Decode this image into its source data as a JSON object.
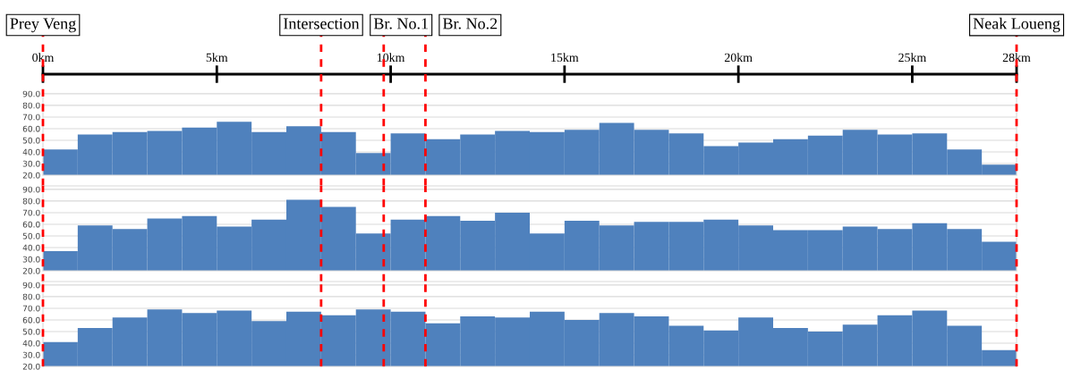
{
  "chart_data": [
    {
      "type": "histogram",
      "bins": [
        0,
        1,
        2,
        3,
        4,
        5,
        6,
        7,
        8,
        9,
        10,
        11,
        12,
        13,
        14,
        15,
        16,
        17,
        18,
        19,
        20,
        21,
        22,
        23,
        24,
        25,
        26,
        27,
        28
      ],
      "values": [
        42,
        55,
        57,
        58,
        61,
        66,
        57,
        62,
        57,
        39,
        56,
        51,
        55,
        58,
        57,
        59,
        65,
        59,
        56,
        45,
        48,
        51,
        54,
        59,
        55,
        56,
        42,
        29
      ],
      "color": "#4f81bd",
      "xlim": [
        0,
        28
      ],
      "ylim": [
        20,
        93
      ],
      "yticks": [
        {
          "value": 20,
          "label": "20.0"
        },
        {
          "value": 30,
          "label": "30.0"
        },
        {
          "value": 40,
          "label": "40.0"
        },
        {
          "value": 50,
          "label": "50.0"
        },
        {
          "value": 60,
          "label": "60.0"
        },
        {
          "value": 70,
          "label": "70.0"
        },
        {
          "value": 80,
          "label": "80.0"
        },
        {
          "value": 90,
          "label": "90.0"
        }
      ],
      "xticks": [
        {
          "value": 0,
          "label": "0km"
        },
        {
          "value": 5,
          "label": "5km"
        },
        {
          "value": 10,
          "label": "10km"
        },
        {
          "value": 15,
          "label": "15km"
        },
        {
          "value": 20,
          "label": "20km"
        },
        {
          "value": 25,
          "label": "25km"
        },
        {
          "value": 28,
          "label": "28km"
        }
      ],
      "grid": "y",
      "ref_lines": [
        {
          "axis": "x",
          "value": 0,
          "label": "Prey Veng",
          "color": "#ff0000",
          "line_style": "dashed"
        },
        {
          "axis": "x",
          "value": 8,
          "label": "Intersection",
          "color": "#ff0000",
          "line_style": "dashed"
        },
        {
          "axis": "x",
          "value": 9.8,
          "label": "Br. No.1",
          "color": "#ff0000",
          "line_style": "dashed"
        },
        {
          "axis": "x",
          "value": 11,
          "label": "Br. No.2",
          "color": "#ff0000",
          "line_style": "dashed"
        },
        {
          "axis": "x",
          "value": 28,
          "label": "Neak Loueng",
          "color": "#ff0000",
          "line_style": "dashed"
        }
      ]
    },
    {
      "type": "histogram",
      "bins": [
        0,
        1,
        2,
        3,
        4,
        5,
        6,
        7,
        8,
        9,
        10,
        11,
        12,
        13,
        14,
        15,
        16,
        17,
        18,
        19,
        20,
        21,
        22,
        23,
        24,
        25,
        26,
        27,
        28
      ],
      "values": [
        37,
        59,
        56,
        65,
        67,
        58,
        64,
        81,
        75,
        52,
        64,
        67,
        63,
        70,
        52,
        63,
        59,
        62,
        62,
        64,
        59,
        55,
        55,
        58,
        56,
        61,
        56,
        45
      ],
      "color": "#4f81bd",
      "xlim": [
        0,
        28
      ],
      "ylim": [
        20,
        93
      ],
      "yticks": [
        {
          "value": 20,
          "label": "20.0"
        },
        {
          "value": 30,
          "label": "30.0"
        },
        {
          "value": 40,
          "label": "40.0"
        },
        {
          "value": 50,
          "label": "50.0"
        },
        {
          "value": 60,
          "label": "60.0"
        },
        {
          "value": 70,
          "label": "70.0"
        },
        {
          "value": 80,
          "label": "80.0"
        },
        {
          "value": 90,
          "label": "90.0"
        }
      ],
      "tick_labels": "y",
      "grid": "y",
      "ref_lines": [
        {
          "axis": "x",
          "value": 0,
          "color": "#ff0000",
          "line_style": "dashed"
        },
        {
          "axis": "x",
          "value": 8,
          "color": "#ff0000",
          "line_style": "dashed"
        },
        {
          "axis": "x",
          "value": 9.8,
          "color": "#ff0000",
          "line_style": "dashed"
        },
        {
          "axis": "x",
          "value": 11,
          "color": "#ff0000",
          "line_style": "dashed"
        },
        {
          "axis": "x",
          "value": 28,
          "color": "#ff0000",
          "line_style": "dashed"
        }
      ]
    },
    {
      "type": "histogram",
      "bins": [
        0,
        1,
        2,
        3,
        4,
        5,
        6,
        7,
        8,
        9,
        10,
        11,
        12,
        13,
        14,
        15,
        16,
        17,
        18,
        19,
        20,
        21,
        22,
        23,
        24,
        25,
        26,
        27,
        28
      ],
      "values": [
        41,
        53,
        62,
        69,
        66,
        68,
        59,
        67,
        64,
        69,
        67,
        57,
        63,
        62,
        67,
        60,
        66,
        63,
        55,
        51,
        62,
        53,
        50,
        56,
        64,
        68,
        55,
        34
      ],
      "color": "#4f81bd",
      "xlim": [
        0,
        28
      ],
      "ylim": [
        20,
        93
      ],
      "yticks": [
        {
          "value": 20,
          "label": "20.0"
        },
        {
          "value": 30,
          "label": "30.0"
        },
        {
          "value": 40,
          "label": "40.0"
        },
        {
          "value": 50,
          "label": "50.0"
        },
        {
          "value": 60,
          "label": "60.0"
        },
        {
          "value": 70,
          "label": "70.0"
        },
        {
          "value": 80,
          "label": "80.0"
        },
        {
          "value": 90,
          "label": "90.0"
        }
      ],
      "tick_labels": "y",
      "grid": "y",
      "ref_lines": [
        {
          "axis": "x",
          "value": 0,
          "color": "#ff0000",
          "line_style": "dashed"
        },
        {
          "axis": "x",
          "value": 8,
          "color": "#ff0000",
          "line_style": "dashed"
        },
        {
          "axis": "x",
          "value": 9.8,
          "color": "#ff0000",
          "line_style": "dashed"
        },
        {
          "axis": "x",
          "value": 11,
          "color": "#ff0000",
          "line_style": "dashed"
        },
        {
          "axis": "x",
          "value": 28,
          "color": "#ff0000",
          "line_style": "dashed"
        }
      ]
    }
  ]
}
